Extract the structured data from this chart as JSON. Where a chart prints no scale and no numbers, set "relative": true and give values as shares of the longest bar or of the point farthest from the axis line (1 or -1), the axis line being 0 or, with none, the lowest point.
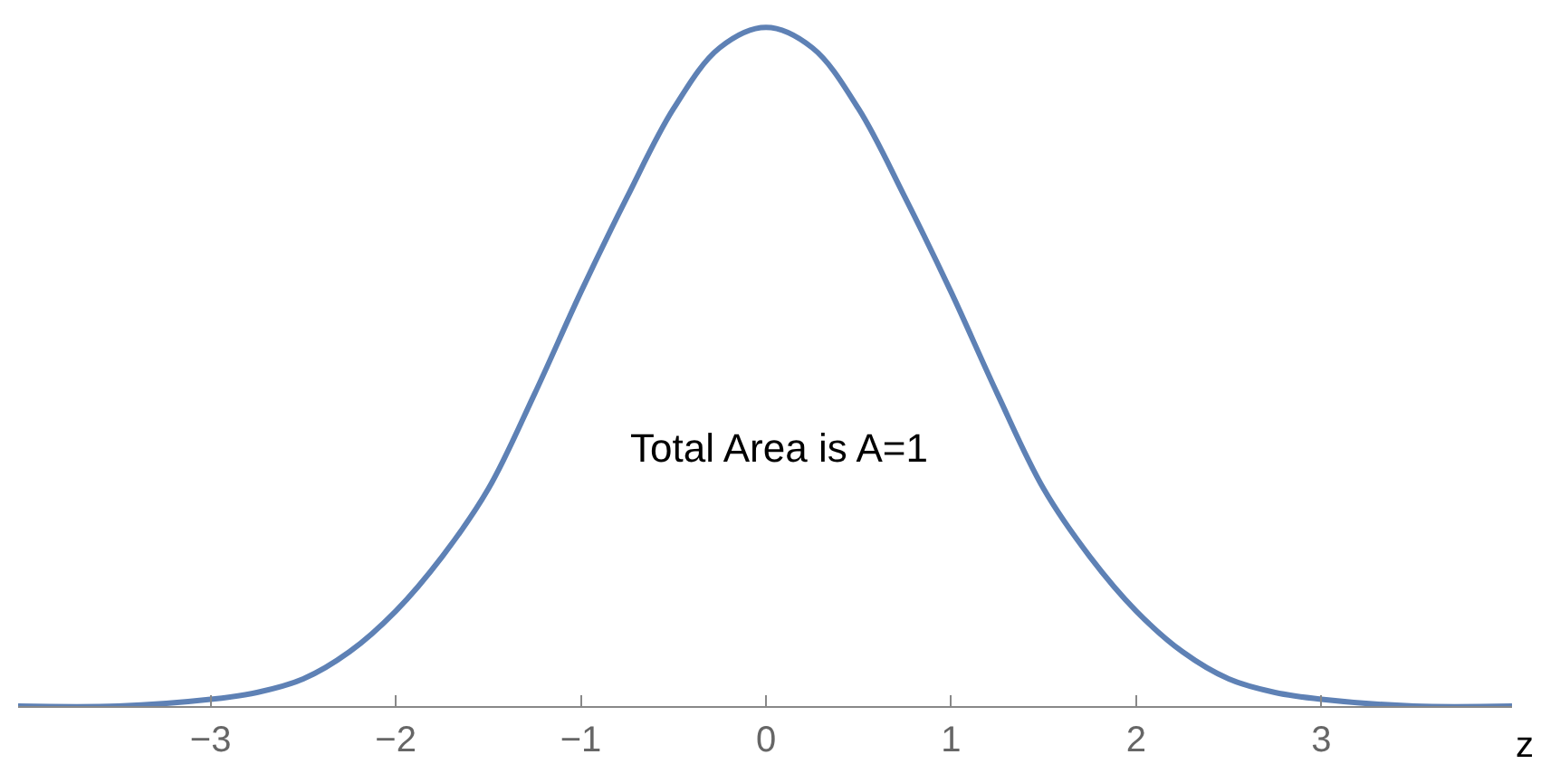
{
  "chart_data": {
    "type": "line",
    "relative": true,
    "xlabel": "z",
    "annotations": [
      "Total Area is A=1"
    ],
    "x": [
      -4.04,
      -3.5,
      -3,
      -2.75,
      -2.5,
      -2.25,
      -2,
      -1.75,
      -1.5,
      -1.25,
      -1,
      -0.75,
      -0.5,
      -0.25,
      0,
      0.25,
      0.5,
      0.75,
      1,
      1.25,
      1.5,
      1.75,
      2,
      2.25,
      2.5,
      2.75,
      3,
      3.5,
      4.03
    ],
    "series": [
      {
        "color": "#5e81b5",
        "values": [
          0,
          0,
          0.01,
          0.02,
          0.04,
          0.08,
          0.14,
          0.22,
          0.32,
          0.46,
          0.61,
          0.75,
          0.88,
          0.97,
          1,
          0.97,
          0.88,
          0.75,
          0.61,
          0.46,
          0.32,
          0.22,
          0.14,
          0.08,
          0.04,
          0.02,
          0.01,
          0,
          0
        ]
      }
    ],
    "xlim": [
      -4.04,
      4.03
    ],
    "xticks": [
      {
        "value": -3,
        "label": "−3"
      },
      {
        "value": -2,
        "label": "−2"
      },
      {
        "value": -1,
        "label": "−1"
      },
      0,
      1,
      2,
      3
    ],
    "grid": false,
    "tick_labels": "x",
    "line_style": "solid",
    "marker": "none"
  }
}
